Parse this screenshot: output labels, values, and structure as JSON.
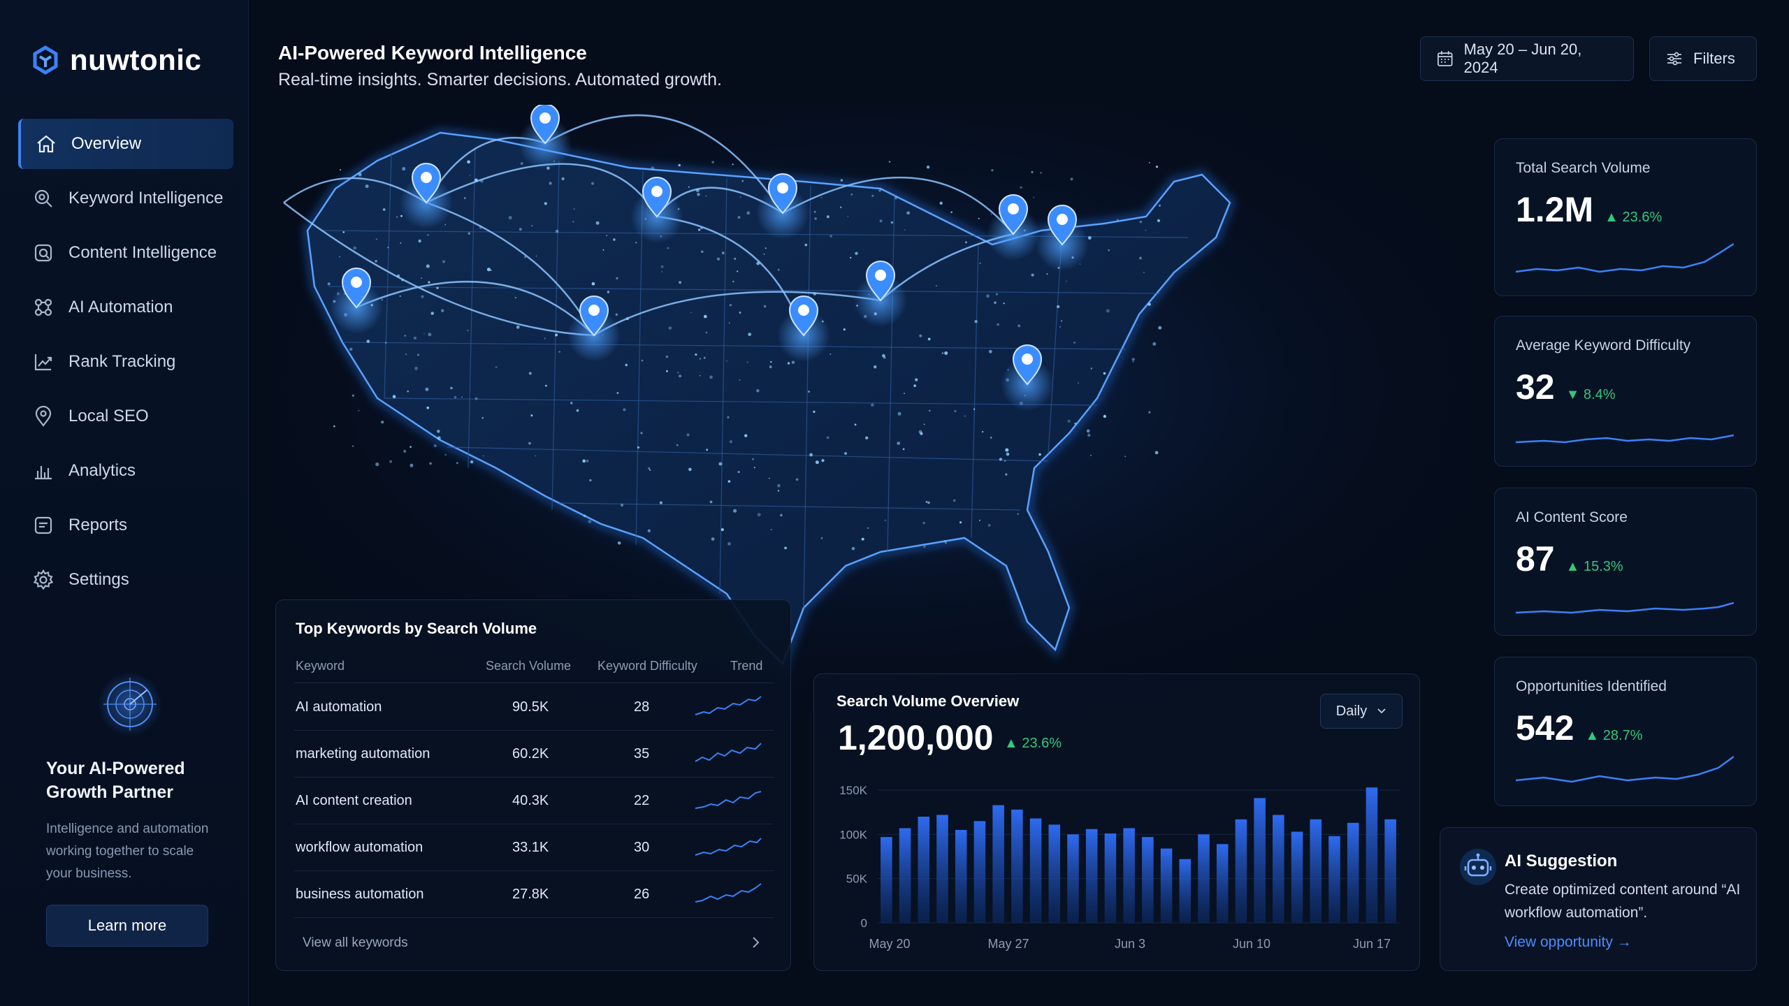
{
  "app": {
    "name": "nuwtonic"
  },
  "sidebar": {
    "items": [
      {
        "label": "Overview",
        "icon": "home-icon",
        "active": true
      },
      {
        "label": "Keyword Intelligence",
        "icon": "keyword-search-icon"
      },
      {
        "label": "Content Intelligence",
        "icon": "content-icon"
      },
      {
        "label": "AI Automation",
        "icon": "automation-icon"
      },
      {
        "label": "Rank Tracking",
        "icon": "rank-chart-icon"
      },
      {
        "label": "Local SEO",
        "icon": "location-pin-icon"
      },
      {
        "label": "Analytics",
        "icon": "bar-chart-icon"
      },
      {
        "label": "Reports",
        "icon": "report-icon"
      },
      {
        "label": "Settings",
        "icon": "gear-icon"
      }
    ],
    "partner": {
      "title": "Your AI-Powered Growth Partner",
      "description": "Intelligence and automation working together to scale your business.",
      "button": "Learn more"
    }
  },
  "header": {
    "title": "AI-Powered Keyword Intelligence",
    "subtitle": "Real-time insights. Smarter decisions. Automated growth.",
    "date_range": "May 20 – Jun 20, 2024",
    "filters_label": "Filters"
  },
  "metrics": [
    {
      "label": "Total Search Volume",
      "value": "1.2M",
      "delta": "23.6%",
      "direction": "up"
    },
    {
      "label": "Average Keyword Difficulty",
      "value": "32",
      "delta": "8.4%",
      "direction": "down"
    },
    {
      "label": "AI Content Score",
      "value": "87",
      "delta": "15.3%",
      "direction": "up"
    },
    {
      "label": "Opportunities Identified",
      "value": "542",
      "delta": "28.7%",
      "direction": "up"
    }
  ],
  "suggestion": {
    "title": "AI Suggestion",
    "text": "Create optimized content around “AI workflow automation”.",
    "link": "View opportunity →"
  },
  "keywords_table": {
    "title": "Top Keywords by Search Volume",
    "columns": [
      "Keyword",
      "Search Volume",
      "Keyword Difficulty",
      "Trend"
    ],
    "rows": [
      {
        "keyword": "AI automation",
        "volume": "90.5K",
        "difficulty": "28"
      },
      {
        "keyword": "marketing automation",
        "volume": "60.2K",
        "difficulty": "35"
      },
      {
        "keyword": "AI content creation",
        "volume": "40.3K",
        "difficulty": "22"
      },
      {
        "keyword": "workflow automation",
        "volume": "33.1K",
        "difficulty": "30"
      },
      {
        "keyword": "business automation",
        "volume": "27.8K",
        "difficulty": "26"
      }
    ],
    "view_all": "View all keywords"
  },
  "volume_overview": {
    "title": "Search Volume Overview",
    "value": "1,200,000",
    "delta": "23.6%",
    "granularity": "Daily"
  },
  "chart_data": {
    "type": "bar",
    "title": "Search Volume Overview",
    "ylim": [
      0,
      150000
    ],
    "yticks": [
      "0",
      "50K",
      "100K",
      "150K"
    ],
    "xticks": [
      "May 20",
      "May 27",
      "Jun 3",
      "Jun 10",
      "Jun 17"
    ],
    "values": [
      97000,
      107000,
      120000,
      122000,
      105000,
      115000,
      133000,
      128000,
      118000,
      111000,
      100000,
      106000,
      101000,
      107000,
      97000,
      84000,
      72000,
      100000,
      89000,
      117000,
      141000,
      122000,
      103000,
      117000,
      98000,
      113000,
      153000,
      117000
    ]
  }
}
